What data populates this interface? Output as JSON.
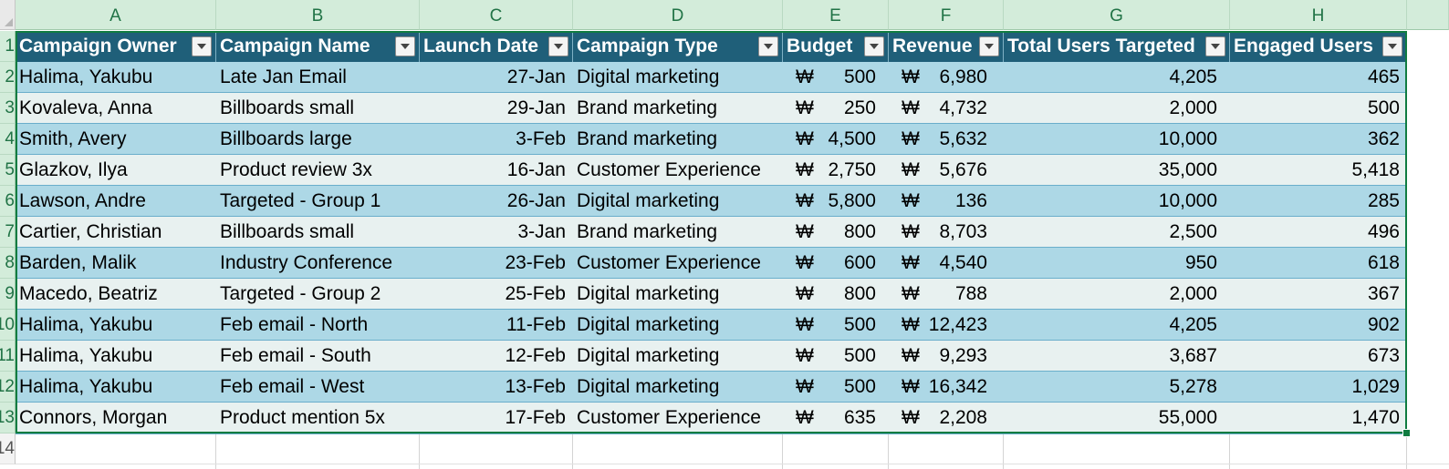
{
  "column_headers": [
    "A",
    "B",
    "C",
    "D",
    "E",
    "F",
    "G",
    "H"
  ],
  "row_numbers": [
    "1",
    "2",
    "3",
    "4",
    "5",
    "6",
    "7",
    "8",
    "9",
    "10",
    "11",
    "12",
    "13",
    "14"
  ],
  "table": {
    "headers": [
      "Campaign Owner",
      "Campaign Name",
      "Launch Date",
      "Campaign Type",
      "Budget",
      "Revenue",
      "Total Users Targeted",
      "Engaged Users"
    ],
    "currency_symbol": "₩",
    "rows": [
      [
        "Halima, Yakubu",
        "Late Jan Email",
        "27-Jan",
        "Digital marketing",
        "500",
        "6,980",
        "4,205",
        "465"
      ],
      [
        "Kovaleva, Anna",
        "Billboards small",
        "29-Jan",
        "Brand marketing",
        "250",
        "4,732",
        "2,000",
        "500"
      ],
      [
        "Smith, Avery",
        "Billboards large",
        "3-Feb",
        "Brand marketing",
        "4,500",
        "5,632",
        "10,000",
        "362"
      ],
      [
        "Glazkov, Ilya",
        "Product review 3x",
        "16-Jan",
        "Customer Experience",
        "2,750",
        "5,676",
        "35,000",
        "5,418"
      ],
      [
        "Lawson, Andre",
        "Targeted - Group 1",
        "26-Jan",
        "Digital marketing",
        "5,800",
        "136",
        "10,000",
        "285"
      ],
      [
        "Cartier, Christian",
        "Billboards small",
        "3-Jan",
        "Brand marketing",
        "800",
        "8,703",
        "2,500",
        "496"
      ],
      [
        "Barden, Malik",
        "Industry Conference",
        "23-Feb",
        "Customer Experience",
        "600",
        "4,540",
        "950",
        "618"
      ],
      [
        "Macedo, Beatriz",
        "Targeted - Group 2",
        "25-Feb",
        "Digital marketing",
        "800",
        "788",
        "2,000",
        "367"
      ],
      [
        "Halima, Yakubu",
        "Feb email - North",
        "11-Feb",
        "Digital marketing",
        "500",
        "12,423",
        "4,205",
        "902"
      ],
      [
        "Halima, Yakubu",
        "Feb email - South",
        "12-Feb",
        "Digital marketing",
        "500",
        "9,293",
        "3,687",
        "673"
      ],
      [
        "Halima, Yakubu",
        "Feb email - West",
        "13-Feb",
        "Digital marketing",
        "500",
        "16,342",
        "5,278",
        "1,029"
      ],
      [
        "Connors, Morgan",
        "Product mention 5x",
        "17-Feb",
        "Customer Experience",
        "635",
        "2,208",
        "55,000",
        "1,470"
      ]
    ]
  },
  "colors": {
    "header_fill": "#1f5f79",
    "band_dark": "#add8e6",
    "band_light": "#e8f1f0",
    "selection": "#107c41",
    "column_header_text": "#217346"
  }
}
